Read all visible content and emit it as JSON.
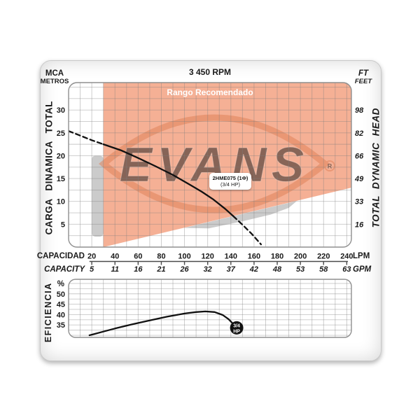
{
  "header": {
    "rpm": "3 450 RPM",
    "mca": "MCA",
    "metros": "METROS",
    "ft": "FT",
    "feet": "FEET"
  },
  "side_labels": {
    "left_vertical": "CARGA DINAMICA TOTAL",
    "right_vertical": "TOTAL DYNAMIC HEAD",
    "efficiency_vertical": "EFICIENCIA",
    "efficiency_unit": "%"
  },
  "axis_rows": {
    "row1_label": "CAPACIDAD",
    "row1_unit": "LPM",
    "row2_label": "CAPACITY",
    "row2_unit": "GPM"
  },
  "annotations": {
    "recommended_range": "Rango Recomendado",
    "model_line1": "2HME075 (1Φ)",
    "model_line2": "(3/4 HP)",
    "marker_top": "3/4",
    "marker_bottom": "HP"
  },
  "watermark": {
    "text": "EVANS",
    "registered": "R"
  },
  "colors": {
    "recommended_fill": "#ED7342",
    "recommended_opacity": 0.56,
    "grey_region": "#CBCBCB",
    "watermark": "#DF7F55",
    "curve": "#111111",
    "grid": "#7F7F7F",
    "plot_border": "#8F8F8F",
    "range_label_text": "#FFFFFF"
  },
  "chart_data": [
    {
      "type": "line",
      "title": "3 450 RPM",
      "x_axis": {
        "label": "CAPACIDAD",
        "unit": "LPM",
        "ticks": [
          20,
          40,
          60,
          80,
          100,
          120,
          140,
          160,
          180,
          200,
          220,
          240
        ],
        "range": [
          0,
          244
        ],
        "grid_step": 10
      },
      "x_axis_secondary": {
        "label": "CAPACITY",
        "unit": "GPM",
        "ticks": [
          5,
          11,
          16,
          21,
          26,
          32,
          37,
          42,
          48,
          53,
          58,
          63
        ]
      },
      "y_axis": {
        "label": "CARGA DINAMICA TOTAL",
        "units": [
          "MCA",
          "METROS"
        ],
        "ticks": [
          5,
          10,
          15,
          20,
          25,
          30
        ],
        "range": [
          0,
          36
        ],
        "grid_step": 2.5
      },
      "y_axis_secondary": {
        "label": "TOTAL DYNAMIC HEAD",
        "units": [
          "FT",
          "FEET"
        ],
        "ticks": [
          16,
          33,
          49,
          66,
          82,
          98
        ]
      },
      "series": [
        {
          "name": "2HME075 (3/4 HP) head curve",
          "segments": [
            {
              "style": "dashed",
              "points": [
                [
                  0,
                  25.4
                ],
                [
                  10,
                  24.4
                ],
                [
                  20,
                  23.4
                ],
                [
                  30,
                  22.5
                ]
              ]
            },
            {
              "style": "solid",
              "points": [
                [
                  30,
                  22.5
                ],
                [
                  45,
                  21.2
                ],
                [
                  60,
                  19.5
                ],
                [
                  75,
                  17.7
                ],
                [
                  90,
                  15.8
                ],
                [
                  105,
                  13.6
                ],
                [
                  115,
                  12.1
                ],
                [
                  125,
                  10.4
                ],
                [
                  135,
                  8.4
                ],
                [
                  142,
                  6.8
                ]
              ]
            },
            {
              "style": "dashed",
              "points": [
                [
                  142,
                  6.8
                ],
                [
                  150,
                  4.9
                ],
                [
                  158,
                  2.9
                ],
                [
                  166,
                  0.6
                ]
              ]
            }
          ]
        }
      ],
      "regions": [
        {
          "name": "rango-recomendado",
          "label": "Rango Recomendado",
          "shape": "polygon",
          "points": [
            [
              30,
              36
            ],
            [
              30,
              0
            ],
            [
              244,
              13
            ],
            [
              244,
              36
            ]
          ]
        },
        {
          "name": "grey-band",
          "shape": "rect",
          "x": [
            20,
            30
          ],
          "y": [
            2.3,
            20
          ]
        },
        {
          "name": "grey-crescent",
          "shape": "polygon",
          "points": [
            [
              99.7,
              4.2
            ],
            [
              196.9,
              10.1
            ],
            [
              190,
              8.6
            ],
            [
              174,
              7.1
            ],
            [
              151,
              5.7
            ],
            [
              121,
              4.1
            ]
          ]
        }
      ]
    },
    {
      "type": "line",
      "name": "efficiency",
      "x_axis": {
        "shared_with": "capacity axis above",
        "range": [
          0,
          244
        ],
        "grid_step": 10
      },
      "y_axis": {
        "label": "EFICIENCIA",
        "unit": "%",
        "ticks": [
          35,
          40,
          45,
          50
        ],
        "range": [
          29,
          57
        ],
        "grid_step": 2.5
      },
      "series": [
        {
          "name": "efficiency curve",
          "points": [
            [
              18,
              30
            ],
            [
              30,
              31.8
            ],
            [
              40,
              33.3
            ],
            [
              55,
              35.3
            ],
            [
              70,
              37.2
            ],
            [
              85,
              39
            ],
            [
              100,
              40.5
            ],
            [
              110,
              41.2
            ],
            [
              118,
              41.5
            ],
            [
              126,
              41.2
            ],
            [
              133,
              39.8
            ],
            [
              138,
              37.8
            ],
            [
              142,
              35.5
            ],
            [
              145,
              33.6
            ]
          ],
          "end_marker": {
            "x": 145,
            "y": 33.6,
            "label_top": "3/4",
            "label_bottom": "HP"
          }
        }
      ]
    }
  ]
}
